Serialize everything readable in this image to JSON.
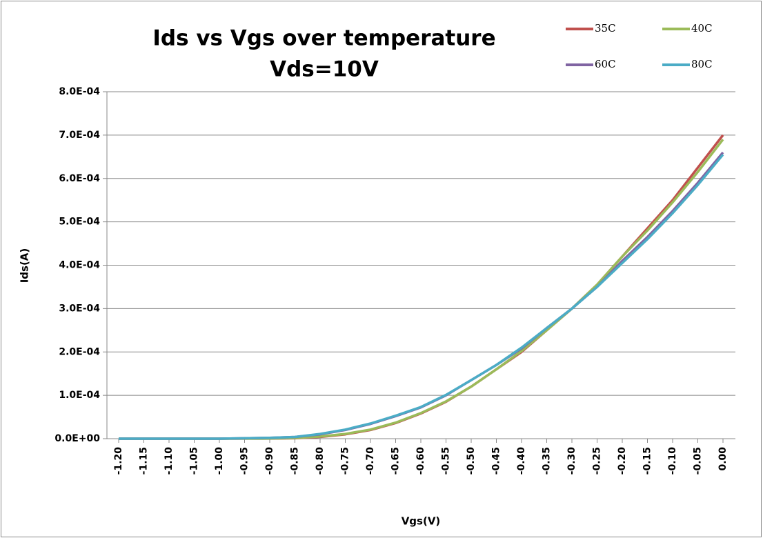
{
  "chart_data": {
    "type": "line",
    "title": "Ids vs Vgs over temperature",
    "subtitle": "Vds=10V",
    "x_label": "Vgs(V)",
    "y_label": "Ids(A)",
    "categories": [
      "-1.20",
      "-1.15",
      "-1.10",
      "-1.05",
      "-1.00",
      "-0.95",
      "-0.90",
      "-0.85",
      "-0.80",
      "-0.75",
      "-0.70",
      "-0.65",
      "-0.60",
      "-0.55",
      "-0.50",
      "-0.45",
      "-0.40",
      "-0.35",
      "-0.30",
      "-0.25",
      "-0.20",
      "-0.15",
      "-0.10",
      "-0.05",
      "0.00"
    ],
    "series": [
      {
        "name": "35C",
        "color": "#c0504d",
        "values": [
          0,
          0,
          0,
          0,
          0,
          1e-07,
          2e-07,
          1e-06,
          4e-06,
          1e-05,
          2e-05,
          3.6e-05,
          5.8e-05,
          8.5e-05,
          0.00012,
          0.00016,
          0.0002,
          0.00025,
          0.0003,
          0.000355,
          0.00042,
          0.000485,
          0.00055,
          0.000625,
          0.0007
        ]
      },
      {
        "name": "40C",
        "color": "#9bbb59",
        "values": [
          0,
          0,
          0,
          0,
          0,
          1e-07,
          3e-07,
          1.5e-06,
          5e-06,
          1.1e-05,
          2.1e-05,
          3.7e-05,
          5.9e-05,
          8.6e-05,
          0.00012,
          0.00016,
          0.000202,
          0.00025,
          0.0003,
          0.000355,
          0.00042,
          0.00048,
          0.000545,
          0.000615,
          0.00069
        ]
      },
      {
        "name": "60C",
        "color": "#8064a2",
        "values": [
          0,
          0,
          0,
          0,
          0,
          1e-06,
          2e-06,
          4e-06,
          1e-05,
          2e-05,
          3.4e-05,
          5.2e-05,
          7.2e-05,
          0.0001,
          0.000135,
          0.00017,
          0.000208,
          0.000255,
          0.0003,
          0.00035,
          0.00041,
          0.000465,
          0.000525,
          0.00059,
          0.00066
        ]
      },
      {
        "name": "80C",
        "color": "#4bacc6",
        "values": [
          0,
          0,
          0,
          0,
          0,
          1e-06,
          2e-06,
          4e-06,
          1.1e-05,
          2.1e-05,
          3.5e-05,
          5.3e-05,
          7.3e-05,
          0.000101,
          0.000135,
          0.00017,
          0.00021,
          0.000255,
          0.0003,
          0.00035,
          0.000405,
          0.00046,
          0.00052,
          0.000585,
          0.000655
        ]
      }
    ],
    "ylim": [
      0,
      0.0008
    ],
    "yticks": [
      {
        "value": 0,
        "label": "0.0E+00"
      },
      {
        "value": 0.0001,
        "label": "1.0E-04"
      },
      {
        "value": 0.0002,
        "label": "2.0E-04"
      },
      {
        "value": 0.0003,
        "label": "3.0E-04"
      },
      {
        "value": 0.0004,
        "label": "4.0E-04"
      },
      {
        "value": 0.0005,
        "label": "5.0E-04"
      },
      {
        "value": 0.0006,
        "label": "6.0E-04"
      },
      {
        "value": 0.0007,
        "label": "7.0E-04"
      },
      {
        "value": 0.0008,
        "label": "8.0E-04"
      }
    ],
    "grid": true
  }
}
